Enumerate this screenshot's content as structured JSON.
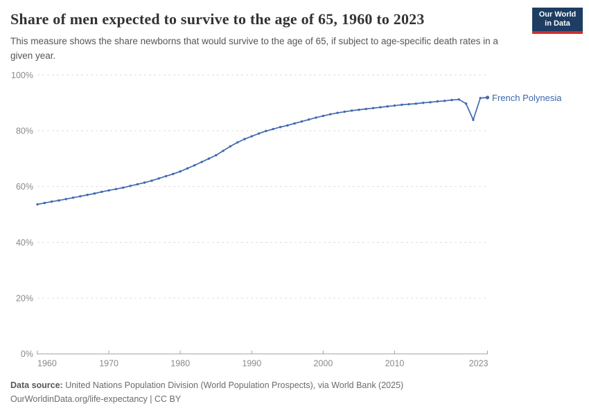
{
  "header": {
    "title": "Share of men expected to survive to the age of 65, 1960 to 2023",
    "subtitle": "This measure shows the share newborns that would survive to the age of 65, if subject to age-specific death rates in a given year.",
    "logo": {
      "line1": "Our World",
      "line2": "in Data"
    }
  },
  "chart_data": {
    "type": "line",
    "title": "Share of men expected to survive to the age of 65, 1960 to 2023",
    "subtitle": "This measure shows the share newborns that would survive to the age of 65, if subject to age-specific death rates in a given year.",
    "xlabel": "",
    "ylabel": "",
    "xlim": [
      1960,
      2023
    ],
    "ylim": [
      0,
      100
    ],
    "grid": "horizontal-dashed",
    "legend": "end-of-line-label",
    "yticks": {
      "values": [
        0,
        20,
        40,
        60,
        80,
        100
      ],
      "labels": [
        "0%",
        "20%",
        "40%",
        "60%",
        "80%",
        "100%"
      ]
    },
    "xticks": {
      "values": [
        1960,
        1970,
        1980,
        1990,
        2000,
        2010,
        2023
      ],
      "labels": [
        "1960",
        "1970",
        "1980",
        "1990",
        "2000",
        "2010",
        "2023"
      ]
    },
    "series": [
      {
        "name": "French Polynesia",
        "color": "#4269ae",
        "x": [
          1960,
          1961,
          1962,
          1963,
          1964,
          1965,
          1966,
          1967,
          1968,
          1969,
          1970,
          1971,
          1972,
          1973,
          1974,
          1975,
          1976,
          1977,
          1978,
          1979,
          1980,
          1981,
          1982,
          1983,
          1984,
          1985,
          1986,
          1987,
          1988,
          1989,
          1990,
          1991,
          1992,
          1993,
          1994,
          1995,
          1996,
          1997,
          1998,
          1999,
          2000,
          2001,
          2002,
          2003,
          2004,
          2005,
          2006,
          2007,
          2008,
          2009,
          2010,
          2011,
          2012,
          2013,
          2014,
          2015,
          2016,
          2017,
          2018,
          2019,
          2020,
          2021,
          2022,
          2023
        ],
        "values": [
          53.6,
          54.1,
          54.6,
          55.0,
          55.5,
          56.0,
          56.5,
          57.0,
          57.5,
          58.1,
          58.6,
          59.1,
          59.6,
          60.2,
          60.8,
          61.4,
          62.1,
          62.9,
          63.7,
          64.5,
          65.4,
          66.5,
          67.6,
          68.8,
          70.0,
          71.2,
          72.8,
          74.4,
          75.8,
          77.0,
          78.0,
          79.0,
          79.9,
          80.6,
          81.3,
          81.9,
          82.6,
          83.3,
          84.0,
          84.7,
          85.3,
          85.9,
          86.4,
          86.8,
          87.2,
          87.5,
          87.8,
          88.1,
          88.4,
          88.7,
          89.0,
          89.3,
          89.5,
          89.7,
          90.0,
          90.2,
          90.5,
          90.7,
          91.0,
          91.2,
          89.7,
          83.9,
          91.7,
          91.9
        ]
      }
    ]
  },
  "colors": {
    "line": "#4269ae",
    "entity_label": "#3a67ad",
    "gridline": "#dddddd",
    "axis": "#a3a3a3",
    "tick_label": "#8a8a8a",
    "logo_bg": "#1d3d63",
    "logo_stripe": "#cf2e2e"
  },
  "footer": {
    "datasource_label": "Data source:",
    "datasource_text": " United Nations Population Division (World Population Prospects), via World Bank (2025)",
    "license_text": "OurWorldinData.org/life-expectancy | CC BY"
  }
}
